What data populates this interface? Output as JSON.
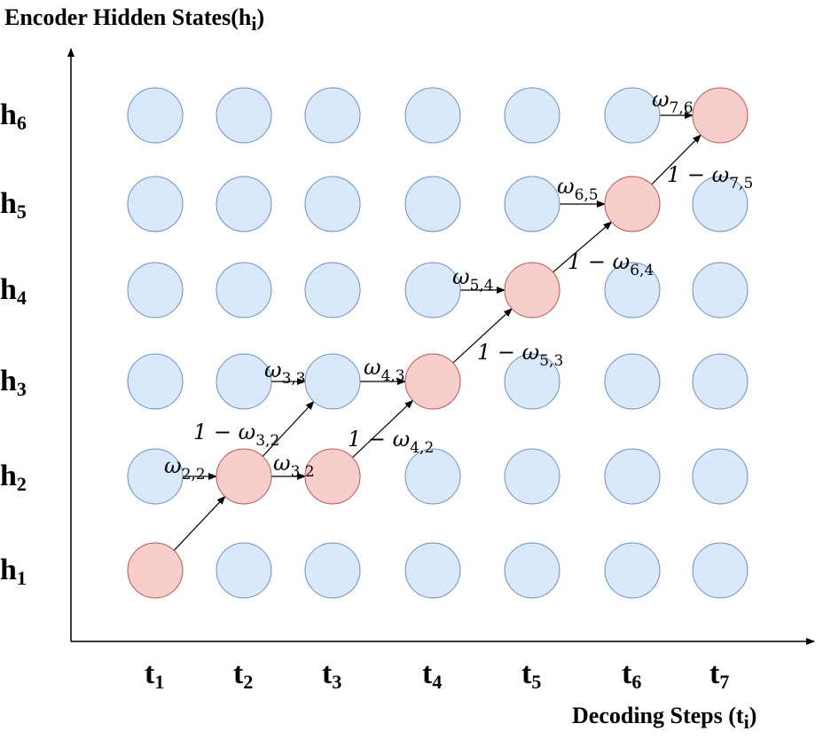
{
  "title_y": {
    "main": "Encoder Hidden States(h",
    "sub": "i",
    "close": ")"
  },
  "title_x": {
    "main": "Decoding Steps (t",
    "sub": "i",
    "close": ")"
  },
  "columns": [
    {
      "base": "t",
      "sub": "1"
    },
    {
      "base": "t",
      "sub": "2"
    },
    {
      "base": "t",
      "sub": "3"
    },
    {
      "base": "t",
      "sub": "4"
    },
    {
      "base": "t",
      "sub": "5"
    },
    {
      "base": "t",
      "sub": "6"
    },
    {
      "base": "t",
      "sub": "7"
    }
  ],
  "rows": [
    {
      "base": "h",
      "sub": "6"
    },
    {
      "base": "h",
      "sub": "5"
    },
    {
      "base": "h",
      "sub": "4"
    },
    {
      "base": "h",
      "sub": "3"
    },
    {
      "base": "h",
      "sub": "2"
    },
    {
      "base": "h",
      "sub": "1"
    }
  ],
  "colors": {
    "node_blue_fill": "#dae8fc",
    "node_blue_stroke": "#6c8ebf",
    "node_red_fill": "#f8cecc",
    "node_red_stroke": "#b85450"
  },
  "highlighted_path": [
    [
      1,
      1
    ],
    [
      2,
      2
    ],
    [
      3,
      2
    ],
    [
      4,
      3
    ],
    [
      5,
      4
    ],
    [
      6,
      5
    ],
    [
      7,
      6
    ]
  ],
  "edges": [
    {
      "from": [
        1,
        1
      ],
      "to": [
        2,
        2
      ]
    },
    {
      "from": [
        1,
        2
      ],
      "to": [
        2,
        2
      ]
    },
    {
      "from": [
        2,
        2
      ],
      "to": [
        3,
        2
      ]
    },
    {
      "from": [
        2,
        2
      ],
      "to": [
        3,
        3
      ]
    },
    {
      "from": [
        2,
        3
      ],
      "to": [
        3,
        3
      ]
    },
    {
      "from": [
        3,
        2
      ],
      "to": [
        4,
        3
      ]
    },
    {
      "from": [
        3,
        3
      ],
      "to": [
        4,
        3
      ]
    },
    {
      "from": [
        4,
        3
      ],
      "to": [
        5,
        4
      ]
    },
    {
      "from": [
        4,
        4
      ],
      "to": [
        5,
        4
      ]
    },
    {
      "from": [
        5,
        4
      ],
      "to": [
        6,
        5
      ]
    },
    {
      "from": [
        5,
        5
      ],
      "to": [
        6,
        5
      ]
    },
    {
      "from": [
        6,
        5
      ],
      "to": [
        7,
        6
      ]
    },
    {
      "from": [
        6,
        6
      ],
      "to": [
        7,
        6
      ]
    }
  ],
  "edge_labels": [
    {
      "text": "ω",
      "sub": "2,2"
    },
    {
      "text": "ω",
      "sub": "3,2"
    },
    {
      "text": "1 − ω",
      "sub": "3,2"
    },
    {
      "text": "ω",
      "sub": "3,3"
    },
    {
      "text": "1 − ω",
      "sub": "4,2"
    },
    {
      "text": "ω",
      "sub": "4,3"
    },
    {
      "text": "1 − ω",
      "sub": "5,3"
    },
    {
      "text": "ω",
      "sub": "5,4"
    },
    {
      "text": "1 − ω",
      "sub": "6,4"
    },
    {
      "text": "ω",
      "sub": "6,5"
    },
    {
      "text": "1 − ω",
      "sub": "7,5"
    },
    {
      "text": "ω",
      "sub": "7,6"
    }
  ]
}
